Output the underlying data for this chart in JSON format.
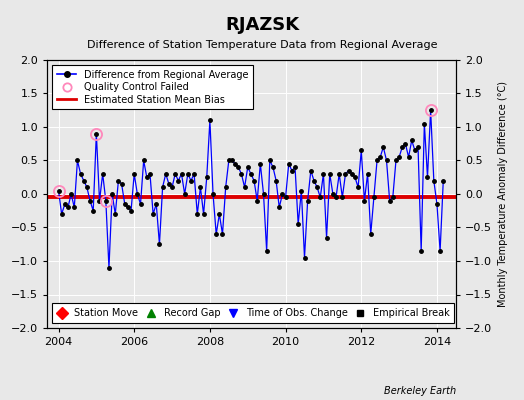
{
  "title": "RJAZSK",
  "subtitle": "Difference of Station Temperature Data from Regional Average",
  "ylabel_right": "Monthly Temperature Anomaly Difference (°C)",
  "credit": "Berkeley Earth",
  "xlim": [
    2003.7,
    2014.5
  ],
  "ylim": [
    -2,
    2
  ],
  "yticks": [
    -2,
    -1.5,
    -1,
    -0.5,
    0,
    0.5,
    1,
    1.5,
    2
  ],
  "xticks": [
    2004,
    2006,
    2008,
    2010,
    2012,
    2014
  ],
  "bias_value": -0.05,
  "bg_color": "#e8e8e8",
  "plot_bg_color": "#e8e8e8",
  "line_color": "#0000ff",
  "bias_color": "#dd0000",
  "times": [
    2004.0,
    2004.083,
    2004.167,
    2004.25,
    2004.333,
    2004.417,
    2004.5,
    2004.583,
    2004.667,
    2004.75,
    2004.833,
    2004.917,
    2005.0,
    2005.083,
    2005.167,
    2005.25,
    2005.333,
    2005.417,
    2005.5,
    2005.583,
    2005.667,
    2005.75,
    2005.833,
    2005.917,
    2006.0,
    2006.083,
    2006.167,
    2006.25,
    2006.333,
    2006.417,
    2006.5,
    2006.583,
    2006.667,
    2006.75,
    2006.833,
    2006.917,
    2007.0,
    2007.083,
    2007.167,
    2007.25,
    2007.333,
    2007.417,
    2007.5,
    2007.583,
    2007.667,
    2007.75,
    2007.833,
    2007.917,
    2008.0,
    2008.083,
    2008.167,
    2008.25,
    2008.333,
    2008.417,
    2008.5,
    2008.583,
    2008.667,
    2008.75,
    2008.833,
    2008.917,
    2009.0,
    2009.083,
    2009.167,
    2009.25,
    2009.333,
    2009.417,
    2009.5,
    2009.583,
    2009.667,
    2009.75,
    2009.833,
    2009.917,
    2010.0,
    2010.083,
    2010.167,
    2010.25,
    2010.333,
    2010.417,
    2010.5,
    2010.583,
    2010.667,
    2010.75,
    2010.833,
    2010.917,
    2011.0,
    2011.083,
    2011.167,
    2011.25,
    2011.333,
    2011.417,
    2011.5,
    2011.583,
    2011.667,
    2011.75,
    2011.833,
    2011.917,
    2012.0,
    2012.083,
    2012.167,
    2012.25,
    2012.333,
    2012.417,
    2012.5,
    2012.583,
    2012.667,
    2012.75,
    2012.833,
    2012.917,
    2013.0,
    2013.083,
    2013.167,
    2013.25,
    2013.333,
    2013.417,
    2013.5,
    2013.583,
    2013.667,
    2013.75,
    2013.833,
    2013.917,
    2014.0,
    2014.083,
    2014.167
  ],
  "values": [
    0.05,
    -0.3,
    -0.15,
    -0.2,
    0.0,
    -0.2,
    0.5,
    0.3,
    0.2,
    0.1,
    -0.1,
    -0.25,
    0.9,
    -0.1,
    0.3,
    -0.1,
    -1.1,
    0.0,
    -0.3,
    0.2,
    0.15,
    -0.15,
    -0.2,
    -0.25,
    0.3,
    0.0,
    -0.15,
    0.5,
    0.25,
    0.3,
    -0.3,
    -0.15,
    -0.75,
    0.1,
    0.3,
    0.15,
    0.1,
    0.3,
    0.2,
    0.3,
    -0.0,
    0.3,
    0.2,
    0.3,
    -0.3,
    0.1,
    -0.3,
    0.25,
    1.1,
    0.0,
    -0.6,
    -0.3,
    -0.6,
    0.1,
    0.5,
    0.5,
    0.45,
    0.4,
    0.3,
    0.1,
    0.4,
    0.3,
    0.2,
    -0.1,
    0.45,
    0.0,
    -0.85,
    0.5,
    0.4,
    0.2,
    -0.2,
    0.0,
    -0.05,
    0.45,
    0.35,
    0.4,
    -0.45,
    0.05,
    -0.95,
    -0.1,
    0.35,
    0.2,
    0.1,
    -0.05,
    0.3,
    -0.65,
    0.3,
    0.0,
    -0.05,
    0.3,
    -0.05,
    0.3,
    0.35,
    0.3,
    0.25,
    0.1,
    0.65,
    -0.1,
    0.3,
    -0.6,
    -0.05,
    0.5,
    0.55,
    0.7,
    0.5,
    -0.1,
    -0.05,
    0.5,
    0.55,
    0.7,
    0.75,
    0.55,
    0.8,
    0.65,
    0.7,
    -0.85,
    1.05,
    0.25,
    1.25,
    0.2,
    -0.15,
    -0.85,
    0.2
  ],
  "qc_failed_times": [
    2004.0,
    2005.0,
    2005.25,
    2013.833
  ],
  "qc_failed_values": [
    0.05,
    0.9,
    -0.1,
    1.25
  ]
}
